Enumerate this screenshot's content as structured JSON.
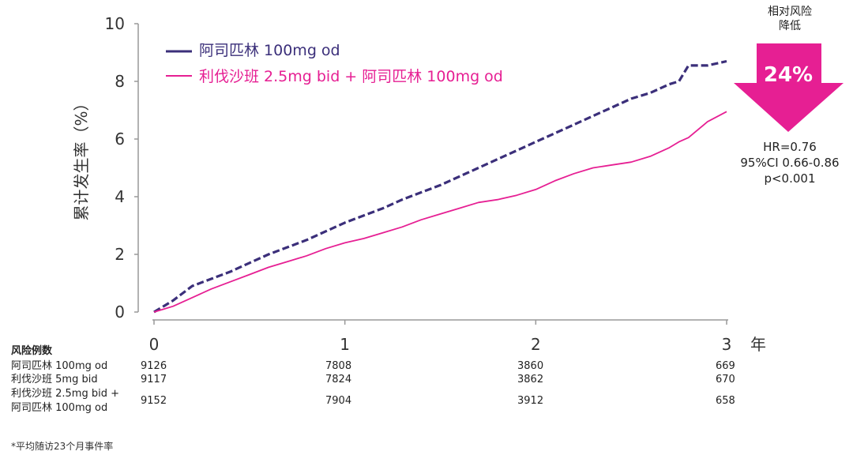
{
  "chart_data": {
    "type": "line",
    "xlabel": "年",
    "ylabel": "累计发生率（%）",
    "xlim": [
      0,
      3
    ],
    "ylim": [
      0,
      10
    ],
    "x_ticks": [
      0,
      1,
      2,
      3
    ],
    "y_ticks": [
      0,
      2,
      4,
      6,
      8,
      10
    ],
    "grid": false,
    "legend_placement": "top-left",
    "series": [
      {
        "name": "阿司匹林 100mg od",
        "color": "#3b2f7a",
        "style": "dashed",
        "x": [
          0,
          0.05,
          0.1,
          0.2,
          0.3,
          0.4,
          0.5,
          0.6,
          0.7,
          0.8,
          0.9,
          1.0,
          1.1,
          1.2,
          1.3,
          1.4,
          1.5,
          1.6,
          1.7,
          1.8,
          1.9,
          2.0,
          2.1,
          2.2,
          2.3,
          2.4,
          2.5,
          2.6,
          2.7,
          2.75,
          2.8,
          2.9,
          3.0
        ],
        "y": [
          0,
          0.2,
          0.4,
          0.9,
          1.15,
          1.4,
          1.7,
          2.0,
          2.25,
          2.5,
          2.8,
          3.1,
          3.35,
          3.6,
          3.9,
          4.15,
          4.4,
          4.7,
          5.0,
          5.3,
          5.6,
          5.9,
          6.2,
          6.5,
          6.8,
          7.1,
          7.4,
          7.6,
          7.9,
          8.0,
          8.55,
          8.55,
          8.7
        ]
      },
      {
        "name": "利伐沙班 2.5mg bid + 阿司匹林 100mg od",
        "color": "#e61f93",
        "style": "solid",
        "x": [
          0,
          0.05,
          0.1,
          0.2,
          0.3,
          0.4,
          0.5,
          0.6,
          0.7,
          0.8,
          0.9,
          1.0,
          1.1,
          1.2,
          1.3,
          1.4,
          1.5,
          1.6,
          1.7,
          1.8,
          1.9,
          2.0,
          2.1,
          2.2,
          2.3,
          2.4,
          2.5,
          2.6,
          2.7,
          2.75,
          2.8,
          2.9,
          3.0
        ],
        "y": [
          0,
          0.1,
          0.2,
          0.5,
          0.8,
          1.05,
          1.3,
          1.55,
          1.75,
          1.95,
          2.2,
          2.4,
          2.55,
          2.75,
          2.95,
          3.2,
          3.4,
          3.6,
          3.8,
          3.9,
          4.05,
          4.25,
          4.55,
          4.8,
          5.0,
          5.1,
          5.2,
          5.4,
          5.7,
          5.9,
          6.05,
          6.6,
          6.95
        ]
      }
    ]
  },
  "relative_risk": {
    "label_line1": "相对风险",
    "label_line2": "降低",
    "value": "24%",
    "arrow_color": "#e61f93"
  },
  "stats": {
    "hr": "HR=0.76",
    "ci": "95%CI 0.66-0.86",
    "p": "p<0.001"
  },
  "risk_table": {
    "title": "风险例数",
    "rows": [
      {
        "label_line1": "阿司匹林 100mg od",
        "label_line2": "",
        "values": [
          "9126",
          "7808",
          "3860",
          "669"
        ]
      },
      {
        "label_line1": "利伐沙班 5mg bid",
        "label_line2": "",
        "values": [
          "9117",
          "7824",
          "3862",
          "670"
        ]
      },
      {
        "label_line1": "利伐沙班 2.5mg bid +",
        "label_line2": "阿司匹林 100mg od",
        "values": [
          "9152",
          "7904",
          "3912",
          "658"
        ]
      }
    ]
  },
  "footnote": "*平均随访23个月事件率"
}
